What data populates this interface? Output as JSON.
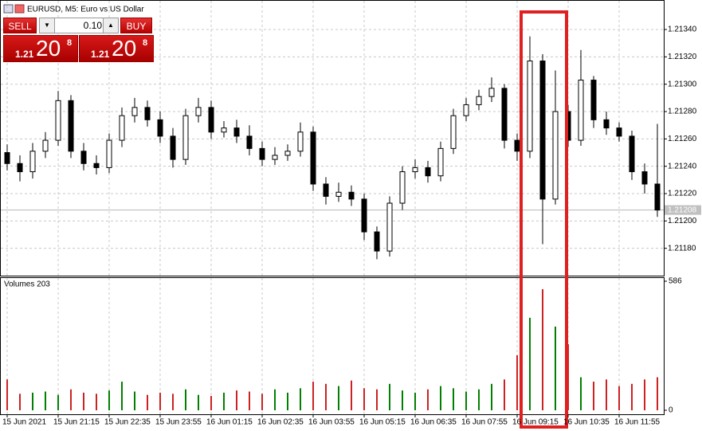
{
  "chart_data": {
    "type": "candlestick",
    "title": "EURUSD, M5:  Euro vs US Dollar",
    "volume_title": "Volumes 203",
    "categories": [
      "15 Jun 2021",
      null,
      null,
      null,
      "15 Jun 21:15",
      null,
      null,
      null,
      "15 Jun 22:35",
      null,
      null,
      null,
      "15 Jun 23:55",
      null,
      null,
      null,
      "16 Jun 01:15",
      null,
      null,
      null,
      "16 Jun 02:35",
      null,
      null,
      null,
      "16 Jun 03:55",
      null,
      null,
      null,
      "16 Jun 05:15",
      null,
      null,
      null,
      "16 Jun 06:35",
      null,
      null,
      null,
      "16 Jun 07:55",
      null,
      null,
      null,
      "16 Jun 09:15",
      null,
      null,
      null,
      "16 Jun 10:35",
      null,
      null,
      null,
      "16 Jun 11:55",
      null,
      null,
      null
    ],
    "open": [
      1.2125,
      1.21242,
      1.21236,
      1.21251,
      1.21259,
      1.21288,
      1.21251,
      1.21242,
      1.21239,
      1.21259,
      1.21277,
      1.21283,
      1.21274,
      1.21262,
      1.21245,
      1.21277,
      1.21283,
      1.21265,
      1.21268,
      1.21262,
      1.21253,
      1.21245,
      1.21248,
      1.21251,
      1.21265,
      1.21227,
      1.21218,
      1.21221,
      1.21216,
      1.21192,
      1.21178,
      1.21213,
      1.21236,
      1.21239,
      1.21233,
      1.21253,
      1.21277,
      1.21285,
      1.21291,
      1.21297,
      1.21259,
      1.21251,
      1.21317,
      1.21216,
      1.2128,
      1.21259,
      1.21303,
      1.21274,
      1.21268,
      1.21262,
      1.21236,
      1.21227
    ],
    "high": [
      1.21256,
      1.21248,
      1.21257,
      1.21265,
      1.21295,
      1.21292,
      1.21257,
      1.21248,
      1.21264,
      1.21283,
      1.2129,
      1.21288,
      1.2128,
      1.21268,
      1.21282,
      1.2129,
      1.21288,
      1.21273,
      1.21274,
      1.2127,
      1.21258,
      1.21254,
      1.21256,
      1.21272,
      1.21269,
      1.21232,
      1.21228,
      1.21226,
      1.2122,
      1.21196,
      1.21218,
      1.2124,
      1.21245,
      1.21244,
      1.21258,
      1.21282,
      1.2129,
      1.21296,
      1.21305,
      1.213,
      1.21264,
      1.21335,
      1.21322,
      1.2131,
      1.21285,
      1.21325,
      1.21306,
      1.2128,
      1.21272,
      1.21266,
      1.21242,
      1.21271
    ],
    "low": [
      1.21237,
      1.21229,
      1.21231,
      1.21246,
      1.21255,
      1.21246,
      1.21237,
      1.21234,
      1.21235,
      1.21254,
      1.21272,
      1.21269,
      1.21257,
      1.21239,
      1.21241,
      1.21272,
      1.2126,
      1.21261,
      1.21257,
      1.21248,
      1.2124,
      1.21241,
      1.21244,
      1.21247,
      1.21222,
      1.21212,
      1.21214,
      1.21211,
      1.21186,
      1.21172,
      1.21174,
      1.21208,
      1.21231,
      1.21228,
      1.21229,
      1.21249,
      1.21273,
      1.21281,
      1.21287,
      1.21253,
      1.21244,
      1.21246,
      1.21183,
      1.21212,
      1.21254,
      1.21255,
      1.21268,
      1.21263,
      1.21258,
      1.2123,
      1.2122,
      1.21203
    ],
    "close": [
      1.21242,
      1.21236,
      1.21251,
      1.21259,
      1.21288,
      1.21251,
      1.21242,
      1.21239,
      1.21259,
      1.21277,
      1.21283,
      1.21274,
      1.21262,
      1.21245,
      1.21277,
      1.21283,
      1.21265,
      1.21268,
      1.21262,
      1.21253,
      1.21245,
      1.21248,
      1.21251,
      1.21265,
      1.21227,
      1.21218,
      1.21221,
      1.21216,
      1.21192,
      1.21178,
      1.21213,
      1.21236,
      1.21239,
      1.21233,
      1.21253,
      1.21277,
      1.21285,
      1.21291,
      1.21297,
      1.21259,
      1.21251,
      1.21317,
      1.21216,
      1.2128,
      1.21259,
      1.21303,
      1.21274,
      1.21268,
      1.21262,
      1.21236,
      1.21227,
      1.21208
    ],
    "volume": [
      140,
      75,
      80,
      85,
      70,
      95,
      80,
      75,
      90,
      130,
      85,
      70,
      80,
      75,
      95,
      70,
      65,
      80,
      90,
      85,
      75,
      95,
      80,
      100,
      130,
      120,
      110,
      135,
      100,
      95,
      120,
      90,
      80,
      95,
      110,
      100,
      85,
      95,
      120,
      140,
      250,
      420,
      550,
      380,
      300,
      150,
      130,
      140,
      110,
      120,
      140,
      150
    ],
    "candle_color": "#000000",
    "volume_up_color": "#008000",
    "volume_down_color": "#cc2222",
    "ylim": [
      1.2116,
      1.21361
    ],
    "yticks": [
      {
        "value": 1.2134,
        "label": "1.21340"
      },
      {
        "value": 1.2132,
        "label": "1.21320"
      },
      {
        "value": 1.213,
        "label": "1.21300"
      },
      {
        "value": 1.2128,
        "label": "1.21280"
      },
      {
        "value": 1.2126,
        "label": "1.21260"
      },
      {
        "value": 1.2124,
        "label": "1.21240"
      },
      {
        "value": 1.2122,
        "label": "1.21220"
      },
      {
        "value": 1.212,
        "label": "1.21200"
      },
      {
        "value": 1.2118,
        "label": "1.21180"
      }
    ],
    "current_price": {
      "value": 1.21208,
      "label": "1.21208"
    },
    "volume_lim": [
      0,
      586
    ],
    "volume_ticks": [
      586,
      0
    ],
    "grid": true
  },
  "trade_panel": {
    "sell": "SELL",
    "buy": "BUY",
    "lot": "0.10",
    "sell_price": {
      "prefix": "1.21",
      "big": "20",
      "sup": "8"
    },
    "buy_price": {
      "prefix": "1.21",
      "big": "20",
      "sup": "8"
    }
  }
}
